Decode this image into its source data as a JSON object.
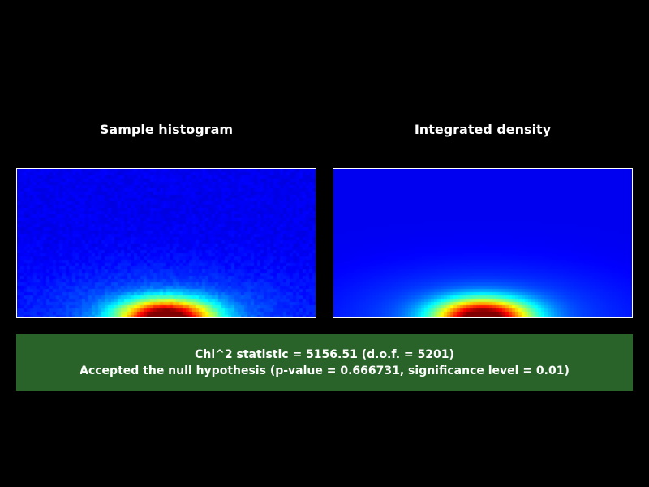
{
  "panels": {
    "left_title": "Sample histogram",
    "right_title": "Integrated density"
  },
  "result": {
    "line1": "Chi^2 statistic = 5156.51 (d.o.f. = 5201)",
    "line2": "Accepted the null hypothesis (p-value = 0.666731, significance level = 0.01)"
  },
  "colors": {
    "background": "#000000",
    "plot_base": "#0000ff",
    "result_box": "#2a6329",
    "text": "#ffffff"
  },
  "colormap": "jet"
}
